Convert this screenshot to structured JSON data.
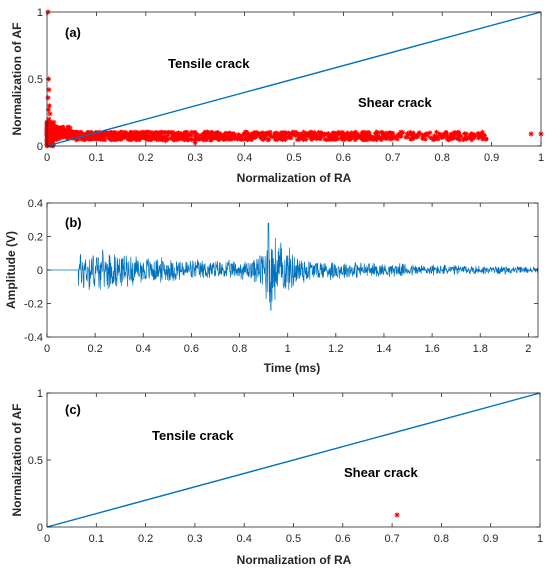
{
  "colors": {
    "line": "#0072BD",
    "marker": "#FF0000",
    "axis": "#262626"
  },
  "chart_data": [
    {
      "type": "scatter",
      "panel_label": "(a)",
      "xlabel": "Normalization of RA",
      "ylabel": "Normalization of AF",
      "xlim": [
        0,
        1
      ],
      "ylim": [
        0,
        1
      ],
      "xticks": [
        "0",
        "0.1",
        "0.2",
        "0.3",
        "0.4",
        "0.5",
        "0.6",
        "0.7",
        "0.8",
        "0.9",
        "1"
      ],
      "yticks": [
        "0",
        "0.5",
        "1"
      ],
      "annotations": [
        {
          "text": "Tensile crack",
          "x": 0.3,
          "y": 0.62
        },
        {
          "text": "Shear crack",
          "x": 0.73,
          "y": 0.33
        }
      ],
      "divider_line": {
        "x": [
          0,
          1
        ],
        "y": [
          0,
          1
        ]
      },
      "outlier_points": {
        "x": [
          0.002,
          0.003,
          0.004,
          0.002,
          0.005,
          0.003,
          0.006,
          0.004,
          0.3,
          0.24,
          0.32,
          0.98,
          1.0
        ],
        "y": [
          1.0,
          0.5,
          0.42,
          0.36,
          0.3,
          0.27,
          0.24,
          0.2,
          0.025,
          0.04,
          0.05,
          0.09,
          0.09
        ]
      },
      "cluster": {
        "x_range": [
          0,
          0.89
        ],
        "y_range": [
          0.03,
          0.13
        ],
        "description_points": 1400
      }
    },
    {
      "type": "line",
      "panel_label": "(b)",
      "xlabel": "Time (ms)",
      "ylabel": "Amplitude (V)",
      "xlim": [
        0,
        2.04
      ],
      "ylim": [
        -0.4,
        0.4
      ],
      "xticks": [
        "0",
        "0.2",
        "0.4",
        "0.6",
        "0.8",
        "1",
        "1.2",
        "1.4",
        "1.6",
        "1.8",
        "2"
      ],
      "yticks": [
        "-0.4",
        "-0.2",
        "0",
        "0.2",
        "0.4"
      ],
      "waveform": {
        "onset_ms": 0.13,
        "end_ms": 2.04,
        "envelope": [
          {
            "t": 0.13,
            "a": 0.15
          },
          {
            "t": 0.2,
            "a": 0.13
          },
          {
            "t": 0.4,
            "a": 0.09
          },
          {
            "t": 0.6,
            "a": 0.07
          },
          {
            "t": 0.8,
            "a": 0.06
          },
          {
            "t": 0.88,
            "a": 0.09
          },
          {
            "t": 0.92,
            "a": 0.27
          },
          {
            "t": 1.0,
            "a": 0.15
          },
          {
            "t": 1.1,
            "a": 0.07
          },
          {
            "t": 1.4,
            "a": 0.045
          },
          {
            "t": 1.8,
            "a": 0.03
          },
          {
            "t": 2.04,
            "a": 0.02
          }
        ],
        "peak": {
          "t": 0.92,
          "a": 0.28
        },
        "trough": {
          "t": 0.93,
          "a": -0.24
        }
      }
    },
    {
      "type": "scatter",
      "panel_label": "(c)",
      "xlabel": "Normalization of RA",
      "ylabel": "Normalization of AF",
      "xlim": [
        0,
        1
      ],
      "ylim": [
        0,
        1
      ],
      "xticks": [
        "0",
        "0.1",
        "0.2",
        "0.3",
        "0.4",
        "0.5",
        "0.6",
        "0.7",
        "0.8",
        "0.9",
        "1"
      ],
      "yticks": [
        "0",
        "0.5",
        "1"
      ],
      "annotations": [
        {
          "text": "Tensile crack",
          "x": 0.3,
          "y": 0.68
        },
        {
          "text": "Shear crack",
          "x": 0.72,
          "y": 0.4
        }
      ],
      "divider_line": {
        "x": [
          0,
          1
        ],
        "y": [
          0,
          1
        ]
      },
      "points": {
        "x": [
          0.71
        ],
        "y": [
          0.09
        ]
      }
    }
  ]
}
